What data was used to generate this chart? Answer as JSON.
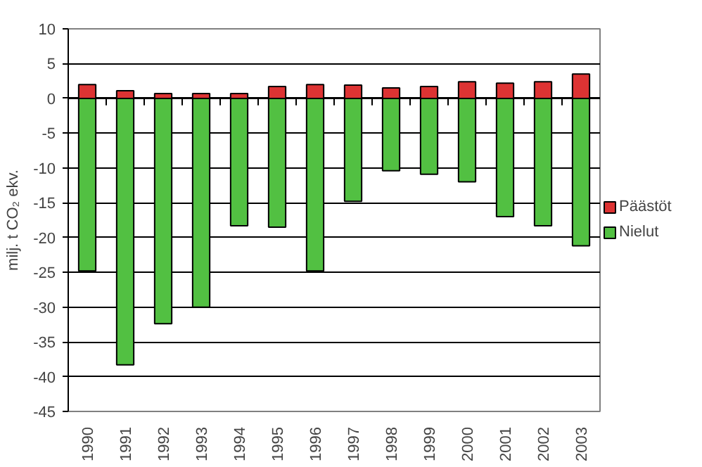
{
  "chart_data": {
    "type": "bar",
    "stacked": true,
    "ylabel": "milj. t CO₂ ekv.",
    "categories": [
      "1990",
      "1991",
      "1992",
      "1993",
      "1994",
      "1995",
      "1996",
      "1997",
      "1998",
      "1999",
      "2000",
      "2001",
      "2002",
      "2003"
    ],
    "series": [
      {
        "name": "Päästöt",
        "color": "#dd3333",
        "values": [
          2.0,
          1.1,
          0.7,
          0.7,
          0.7,
          1.7,
          2.0,
          1.9,
          1.5,
          1.7,
          2.4,
          2.2,
          2.4,
          3.5
        ]
      },
      {
        "name": "Nielut",
        "color": "#52c042",
        "values": [
          -24.8,
          -38.3,
          -32.4,
          -30.0,
          -18.3,
          -18.5,
          -24.8,
          -14.8,
          -10.4,
          -10.9,
          -12.0,
          -17.0,
          -18.3,
          -21.2
        ]
      }
    ],
    "ylim": [
      -45,
      10
    ],
    "yticks": [
      -45,
      -40,
      -35,
      -30,
      -25,
      -20,
      -15,
      -10,
      -5,
      0,
      5,
      10
    ],
    "grid": "y",
    "legend": "right"
  }
}
